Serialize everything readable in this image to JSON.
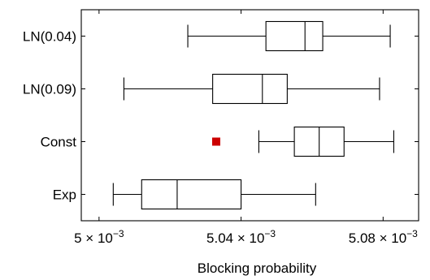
{
  "chart_data": {
    "type": "boxplot",
    "orientation": "horizontal",
    "xlabel": "Blocking probability",
    "ylabel": "",
    "xlim": [
      0.004995,
      0.00509
    ],
    "x_ticks": [
      {
        "value": 0.005,
        "label_base": "5 × 10",
        "label_exp": "−3"
      },
      {
        "value": 0.00504,
        "label_base": "5.04 × 10",
        "label_exp": "−3"
      },
      {
        "value": 0.00508,
        "label_base": "5.08 × 10",
        "label_exp": "−3"
      }
    ],
    "categories": [
      "LN(0.04)",
      "LN(0.09)",
      "Const",
      "Exp"
    ],
    "series": [
      {
        "label": "LN(0.04)",
        "min": 0.005025,
        "q1": 0.005047,
        "median": 0.005058,
        "q3": 0.005063,
        "max": 0.005082,
        "outliers": []
      },
      {
        "label": "LN(0.09)",
        "min": 0.005007,
        "q1": 0.005032,
        "median": 0.005046,
        "q3": 0.005053,
        "max": 0.005079,
        "outliers": []
      },
      {
        "label": "Const",
        "min": 0.005045,
        "q1": 0.005055,
        "median": 0.005062,
        "q3": 0.005069,
        "max": 0.005083,
        "outliers": [
          0.005033
        ]
      },
      {
        "label": "Exp",
        "min": 0.005004,
        "q1": 0.005012,
        "median": 0.005022,
        "q3": 0.00504,
        "max": 0.005061,
        "outliers": []
      }
    ],
    "outlier_color": "#cc0000",
    "grid": false,
    "legend": "none"
  }
}
